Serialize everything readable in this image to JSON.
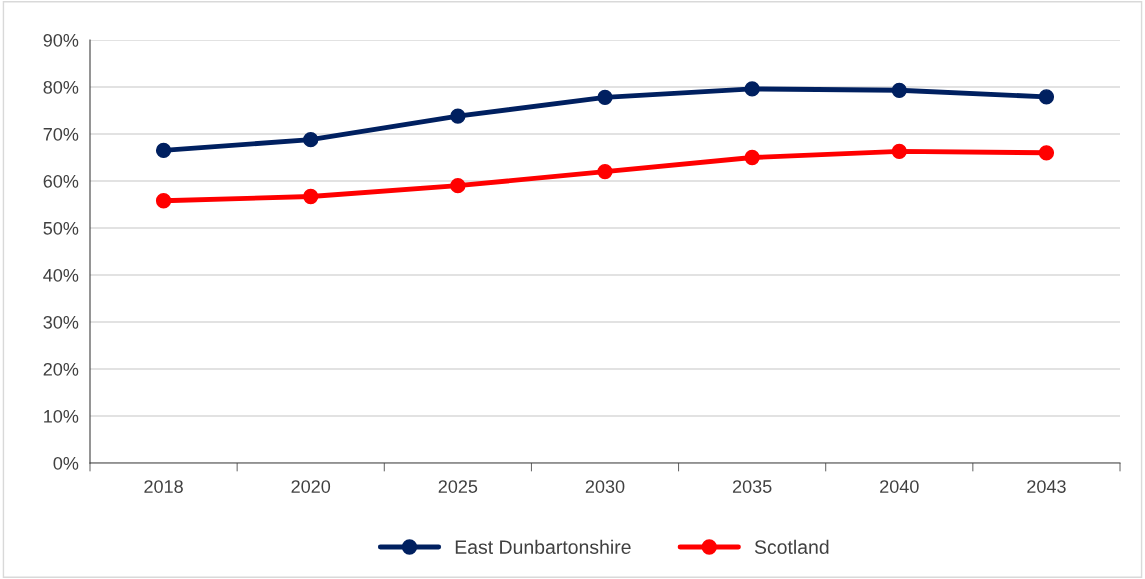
{
  "chart_data": {
    "type": "line",
    "categories": [
      "2018",
      "2020",
      "2025",
      "2030",
      "2035",
      "2040",
      "2043"
    ],
    "series": [
      {
        "name": "East Dunbartonshire",
        "color": "#002060",
        "values": [
          66.5,
          68.8,
          73.8,
          77.8,
          79.6,
          79.3,
          77.9
        ]
      },
      {
        "name": "Scotland",
        "color": "#ff0000",
        "values": [
          55.8,
          56.7,
          59,
          62,
          65,
          66.3,
          66
        ]
      }
    ],
    "ylim": [
      0,
      90
    ],
    "yticks": [
      {
        "value": 0,
        "label": "0%"
      },
      {
        "value": 10,
        "label": "10%"
      },
      {
        "value": 20,
        "label": "20%"
      },
      {
        "value": 30,
        "label": "30%"
      },
      {
        "value": 40,
        "label": "40%"
      },
      {
        "value": 50,
        "label": "50%"
      },
      {
        "value": 60,
        "label": "60%"
      },
      {
        "value": 70,
        "label": "70%"
      },
      {
        "value": 80,
        "label": "80%"
      },
      {
        "value": 90,
        "label": "90%"
      }
    ],
    "grid": "y",
    "legend": "bottom",
    "marker": "circle",
    "line_style": "solid"
  }
}
